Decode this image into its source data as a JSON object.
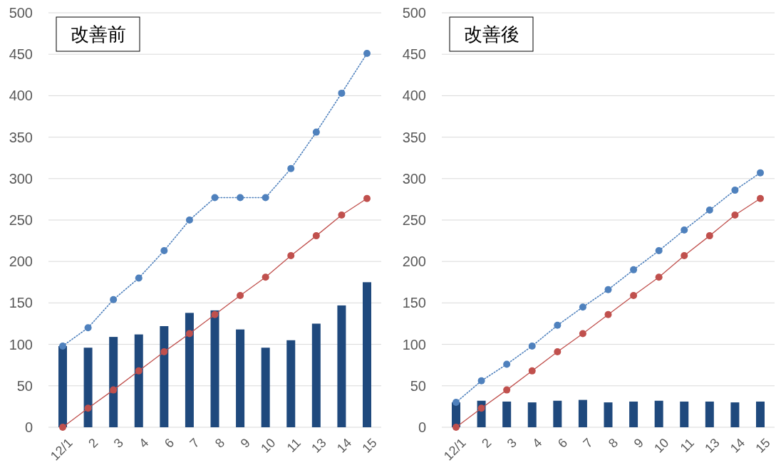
{
  "chart_data": [
    {
      "type": "bar",
      "title": "改善前",
      "categories": [
        "12/1",
        "2",
        "3",
        "4",
        "6",
        "7",
        "8",
        "9",
        "10",
        "11",
        "13",
        "14",
        "15"
      ],
      "ylim": [
        0,
        500
      ],
      "yticks": [
        0,
        50,
        100,
        150,
        200,
        250,
        300,
        350,
        400,
        450,
        500
      ],
      "grid": "y",
      "series": [
        {
          "color": "#1f497d",
          "values": [
            98,
            96,
            109,
            112,
            122,
            138,
            141,
            118,
            96,
            105,
            125,
            147,
            175
          ]
        },
        {
          "type": "line",
          "color": "#4f81bd",
          "line_style": "dotted",
          "marker": "circle",
          "values": [
            98,
            120,
            154,
            180,
            213,
            250,
            277,
            277,
            277,
            312,
            356,
            403,
            451
          ]
        },
        {
          "type": "line",
          "color": "#c0504d",
          "line_style": "solid",
          "marker": "circle",
          "values": [
            0,
            23,
            45,
            68,
            91,
            113,
            136,
            159,
            181,
            207,
            231,
            256,
            276
          ]
        }
      ]
    },
    {
      "type": "bar",
      "title": "改善後",
      "categories": [
        "12/1",
        "2",
        "3",
        "4",
        "6",
        "7",
        "8",
        "9",
        "10",
        "11",
        "13",
        "14",
        "15"
      ],
      "ylim": [
        0,
        500
      ],
      "yticks": [
        0,
        50,
        100,
        150,
        200,
        250,
        300,
        350,
        400,
        450,
        500
      ],
      "grid": "y",
      "series": [
        {
          "color": "#1f497d",
          "values": [
            30,
            32,
            31,
            30,
            32,
            33,
            30,
            31,
            32,
            31,
            31,
            30,
            31
          ]
        },
        {
          "type": "line",
          "color": "#4f81bd",
          "line_style": "dotted",
          "marker": "circle",
          "values": [
            30,
            56,
            76,
            98,
            123,
            145,
            166,
            190,
            213,
            238,
            262,
            286,
            307
          ]
        },
        {
          "type": "line",
          "color": "#c0504d",
          "line_style": "solid",
          "marker": "circle",
          "values": [
            0,
            23,
            45,
            68,
            91,
            113,
            136,
            159,
            181,
            207,
            231,
            256,
            276
          ]
        }
      ]
    }
  ]
}
